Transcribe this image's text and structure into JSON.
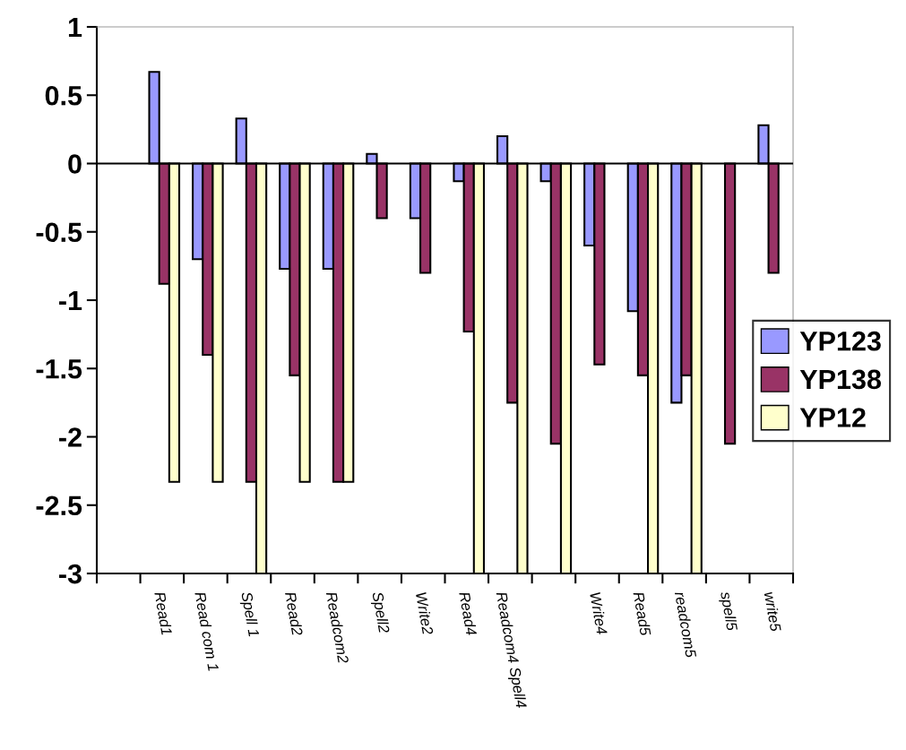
{
  "chart_data": {
    "type": "bar",
    "categories": [
      null,
      "Read1",
      "Read com 1",
      "Spell 1",
      "Read2",
      "Readcom2",
      "Spell2",
      "Write2",
      "Read4",
      "Readcom4 Spell4",
      null,
      "Write4",
      "Read5",
      "readcom5",
      "spell5",
      "write5"
    ],
    "series": [
      {
        "name": "YP123",
        "color": "#9999ff",
        "values": [
          null,
          0.67,
          -0.7,
          0.33,
          -0.77,
          -0.77,
          0.07,
          -0.4,
          -0.13,
          0.2,
          -0.13,
          -0.6,
          -1.08,
          -1.75,
          null,
          0.28
        ]
      },
      {
        "name": "YP138",
        "color": "#993366",
        "values": [
          null,
          -0.88,
          -1.4,
          -2.33,
          -1.55,
          -2.33,
          -0.4,
          -0.8,
          -1.23,
          -1.75,
          -2.05,
          -1.47,
          -1.55,
          -1.55,
          -2.05,
          -0.8
        ]
      },
      {
        "name": "YP12",
        "color": "#ffffcc",
        "values": [
          null,
          -2.33,
          -2.33,
          -3,
          -2.33,
          -2.33,
          null,
          null,
          -3,
          -3,
          -3,
          null,
          -3,
          -3,
          null,
          null
        ]
      }
    ],
    "ylim": [
      -3,
      1
    ],
    "yticks": [
      -3,
      -2.5,
      -2,
      -1.5,
      -1,
      -0.5,
      0,
      0.5,
      1
    ],
    "ref_lines": [
      {
        "axis": "y",
        "value": 0,
        "color": "#000000"
      }
    ],
    "legend": "right",
    "grid": false
  }
}
